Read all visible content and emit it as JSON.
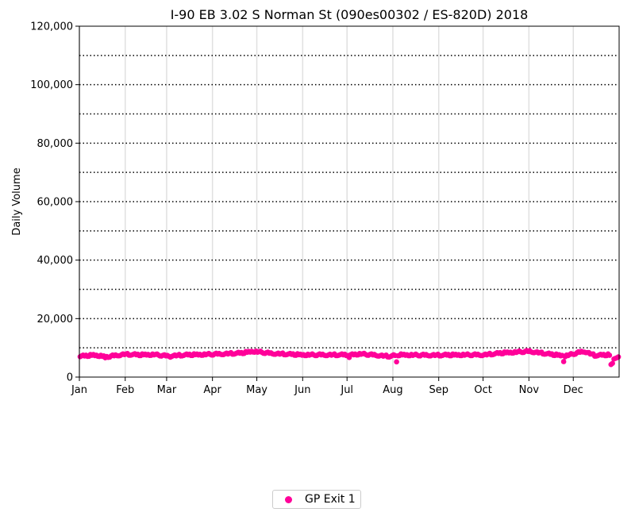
{
  "colors": {
    "series": "#ff0099",
    "hgrid": "#000000",
    "vgrid": "#e0e0e0"
  },
  "chart_data": {
    "type": "scatter",
    "title": "I-90  EB  3.02  S Norman St (090es00302 / ES-820D) 2018",
    "xlabel": "",
    "ylabel": "Daily Volume",
    "ylim": [
      0,
      120000
    ],
    "yticks": [
      "0",
      "20,000",
      "40,000",
      "60,000",
      "80,000",
      "100,000",
      "120,000"
    ],
    "ytick_values": [
      0,
      20000,
      40000,
      60000,
      80000,
      100000,
      120000
    ],
    "hgrid_values": [
      10000,
      20000,
      30000,
      40000,
      50000,
      60000,
      70000,
      80000,
      90000,
      100000,
      110000
    ],
    "xlim": [
      "2018-01-01",
      "2018-12-31"
    ],
    "xticks": [
      "Jan",
      "Feb",
      "Mar",
      "Apr",
      "May",
      "Jun",
      "Jul",
      "Aug",
      "Sep",
      "Oct",
      "Nov",
      "Dec"
    ],
    "xtick_dates": [
      "2018-01-01",
      "2018-02-01",
      "2018-03-01",
      "2018-04-01",
      "2018-05-01",
      "2018-06-01",
      "2018-07-01",
      "2018-08-01",
      "2018-09-01",
      "2018-10-01",
      "2018-11-01",
      "2018-12-01"
    ],
    "grid": "horizontal dotted and vertical light",
    "legend_position": "bottom-center",
    "series": [
      {
        "name": "GP Exit 1",
        "keyframes": [
          [
            "2018-01-01",
            7200
          ],
          [
            "2018-01-10",
            7600
          ],
          [
            "2018-01-20",
            7100
          ],
          [
            "2018-01-31",
            7900
          ],
          [
            "2018-02-10",
            7700
          ],
          [
            "2018-02-20",
            7800
          ],
          [
            "2018-03-01",
            7300
          ],
          [
            "2018-03-15",
            7700
          ],
          [
            "2018-04-01",
            7900
          ],
          [
            "2018-04-20",
            8300
          ],
          [
            "2018-04-28",
            8900
          ],
          [
            "2018-05-10",
            8200
          ],
          [
            "2018-05-31",
            7700
          ],
          [
            "2018-06-15",
            7700
          ],
          [
            "2018-06-30",
            7700
          ],
          [
            "2018-07-10",
            8000
          ],
          [
            "2018-07-20",
            7600
          ],
          [
            "2018-07-29",
            7200
          ],
          [
            "2018-08-05",
            7700
          ],
          [
            "2018-08-20",
            7600
          ],
          [
            "2018-09-01",
            7600
          ],
          [
            "2018-09-15",
            7700
          ],
          [
            "2018-10-01",
            7700
          ],
          [
            "2018-10-15",
            8400
          ],
          [
            "2018-11-01",
            8900
          ],
          [
            "2018-11-15",
            7900
          ],
          [
            "2018-11-25",
            7300
          ],
          [
            "2018-12-05",
            8600
          ],
          [
            "2018-12-08",
            8900
          ],
          [
            "2018-12-15",
            7500
          ],
          [
            "2018-12-24",
            7700
          ],
          [
            "2018-12-31",
            6800
          ]
        ],
        "outliers": [
          [
            "2018-08-03",
            5200
          ],
          [
            "2018-11-24",
            5300
          ],
          [
            "2018-12-26",
            4300
          ],
          [
            "2018-12-27",
            4700
          ],
          [
            "2018-12-28",
            6200
          ],
          [
            "2018-12-29",
            6400
          ],
          [
            "2018-12-30",
            6600
          ],
          [
            "2018-03-03",
            6800
          ],
          [
            "2018-01-18",
            6600
          ],
          [
            "2018-07-02",
            6700
          ]
        ]
      }
    ]
  },
  "legend": {
    "label": "GP Exit 1"
  }
}
